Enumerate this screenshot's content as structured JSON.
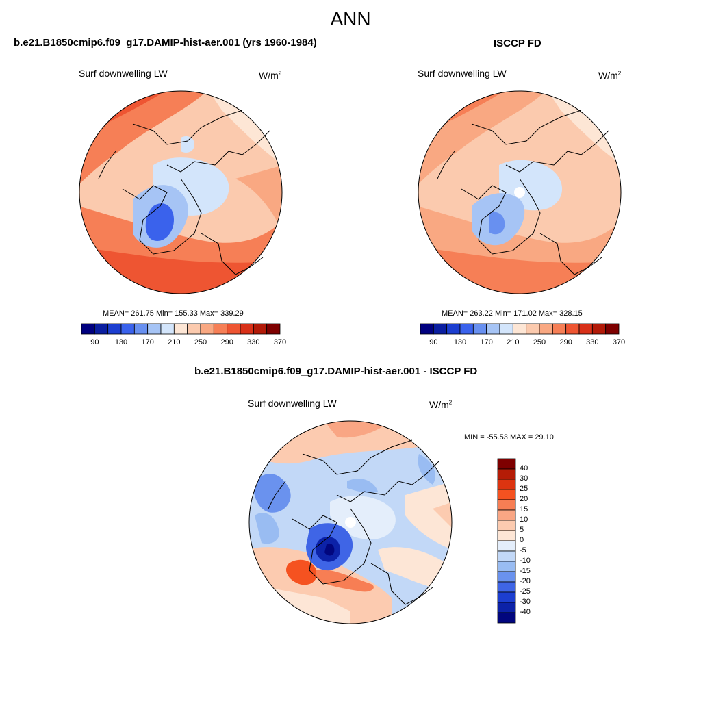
{
  "main_title": "ANN",
  "panel_left": {
    "title": "b.e21.B1850cmip6.f09_g17.DAMIP-hist-aer.001 (yrs 1960-1984)",
    "variable": "Surf downwelling LW",
    "unit": "W/m",
    "unit_exp": "2",
    "stats": "MEAN= 261.75  Min= 155.33  Max= 339.29"
  },
  "panel_right": {
    "title": "ISCCP FD",
    "variable": "Surf downwelling LW",
    "unit": "W/m",
    "unit_exp": "2",
    "stats": "MEAN= 263.22  Min= 171.02  Max= 328.15"
  },
  "panel_diff": {
    "title": "b.e21.B1850cmip6.f09_g17.DAMIP-hist-aer.001 - ISCCP FD",
    "variable": "Surf downwelling LW",
    "unit": "W/m",
    "unit_exp": "2",
    "stats": "MIN = -55.53 MAX =  29.10"
  },
  "colorbar_main": {
    "tick_labels": [
      "90",
      "130",
      "170",
      "210",
      "250",
      "290",
      "330",
      "370"
    ],
    "colors": [
      "#00007f",
      "#0a1ea0",
      "#1c3ed0",
      "#3a62ec",
      "#6890f0",
      "#a6c4f5",
      "#d3e5fb",
      "#fde6d5",
      "#fbcaae",
      "#f9a882",
      "#f67f56",
      "#ee5532",
      "#d83018",
      "#b21a08",
      "#7e0000"
    ]
  },
  "colorbar_diff": {
    "tick_labels": [
      "40",
      "30",
      "25",
      "20",
      "15",
      "10",
      "5",
      "0",
      "-5",
      "-10",
      "-15",
      "-20",
      "-25",
      "-30",
      "-40"
    ],
    "colors": [
      "#7e0000",
      "#b51c06",
      "#dc3410",
      "#f55220",
      "#f77e54",
      "#f9a684",
      "#fccbb0",
      "#fde6d6",
      "#e4eefb",
      "#c2d8f7",
      "#99bcf2",
      "#6a92ee",
      "#3f65e6",
      "#1c3ed0",
      "#0c22a8",
      "#01067e"
    ]
  },
  "legend": "Min/Max stats and color scales as shown",
  "chart_data": {
    "type": "heatmap",
    "projection": "north polar stereographic",
    "fields": [
      {
        "title": "b.e21.B1850cmip6.f09_g17.DAMIP-hist-aer.001 (yrs 1960-1984)",
        "variable": "Surf downwelling LW",
        "units": "W/m2",
        "mean": 261.75,
        "min": 155.33,
        "max": 339.29
      },
      {
        "title": "ISCCP FD",
        "variable": "Surf downwelling LW",
        "units": "W/m2",
        "mean": 263.22,
        "min": 171.02,
        "max": 328.15
      },
      {
        "title": "b.e21.B1850cmip6.f09_g17.DAMIP-hist-aer.001 - ISCCP FD",
        "variable": "Surf downwelling LW",
        "units": "W/m2",
        "min": -55.53,
        "max": 29.1
      }
    ],
    "main_levels": [
      90,
      110,
      130,
      150,
      170,
      190,
      210,
      230,
      250,
      270,
      290,
      310,
      330,
      350,
      370
    ],
    "diff_levels": [
      -40,
      -30,
      -25,
      -20,
      -15,
      -10,
      -5,
      0,
      5,
      10,
      15,
      20,
      25,
      30,
      40
    ]
  }
}
